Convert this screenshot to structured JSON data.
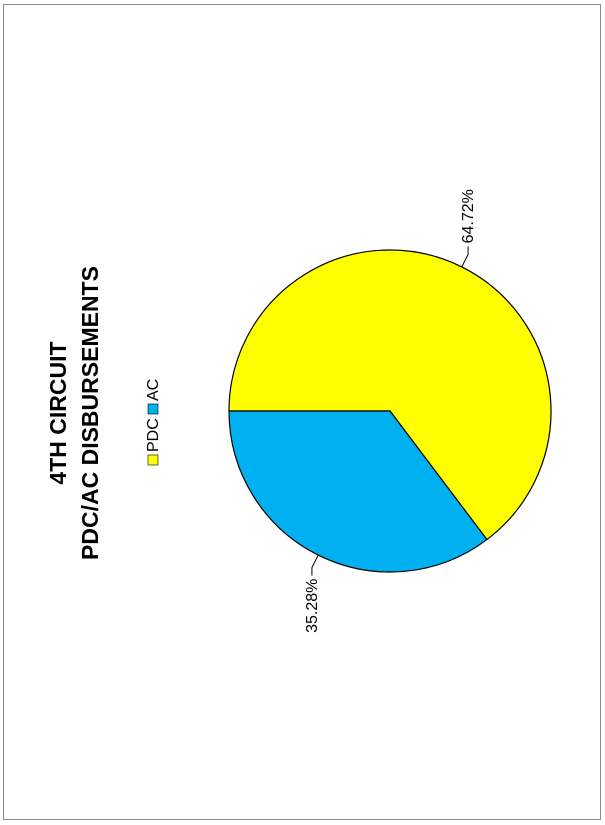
{
  "chart_data": {
    "type": "pie",
    "title_lines": [
      "4TH CIRCUIT",
      "PDC/AC DISBURSEMENTS"
    ],
    "legend_position": "top",
    "slices": [
      {
        "name": "PDC",
        "value": 64.72,
        "label": "64.72%",
        "color": "#FFFF00"
      },
      {
        "name": "AC",
        "value": 35.28,
        "label": "35.28%",
        "color": "#00B0F0"
      }
    ]
  }
}
